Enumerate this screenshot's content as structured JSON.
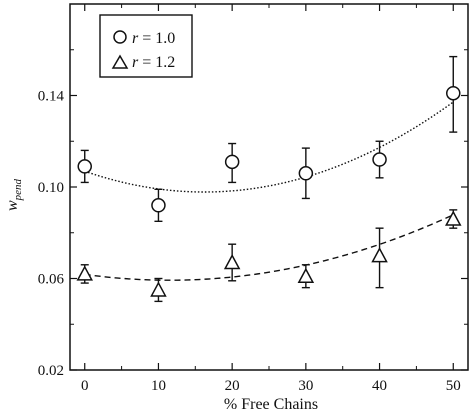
{
  "chart_data": {
    "type": "scatter",
    "xlabel": "% Free Chains",
    "ylabel": "w",
    "ylabel_sub": "pend",
    "xlim": [
      -2,
      52
    ],
    "ylim": [
      0.02,
      0.18
    ],
    "xticks": [
      0,
      10,
      20,
      30,
      40,
      50
    ],
    "xtick_labels": [
      "0",
      "10",
      "20",
      "30",
      "40",
      "50"
    ],
    "yticks": [
      0.02,
      0.06,
      0.1,
      0.14
    ],
    "ytick_labels": [
      "0.02",
      "0.06",
      "0.10",
      "0.14"
    ],
    "grid": false,
    "legend_position": "top-left",
    "series": [
      {
        "name": "r = 1.0",
        "legend_italic": "r",
        "legend_rest": " = 1.0",
        "marker": "circle",
        "line_style": "dotted",
        "x": [
          0,
          10,
          20,
          30,
          40,
          50
        ],
        "y": [
          0.109,
          0.092,
          0.111,
          0.106,
          0.112,
          0.141
        ],
        "err_low": [
          0.102,
          0.085,
          0.102,
          0.095,
          0.104,
          0.124
        ],
        "err_high": [
          0.116,
          0.099,
          0.119,
          0.117,
          0.12,
          0.157
        ],
        "fit_coeffs": [
          0.1069,
          -0.00112,
          3.45e-05
        ]
      },
      {
        "name": "r = 1.2",
        "legend_italic": "r",
        "legend_rest": " = 1.2",
        "marker": "triangle",
        "line_style": "dashed",
        "x": [
          0,
          10,
          20,
          30,
          40,
          50
        ],
        "y": [
          0.062,
          0.055,
          0.067,
          0.061,
          0.07,
          0.086
        ],
        "err_low": [
          0.058,
          0.05,
          0.059,
          0.056,
          0.056,
          0.082
        ],
        "err_high": [
          0.066,
          0.06,
          0.075,
          0.066,
          0.082,
          0.09
        ],
        "fit_coeffs": [
          0.0618,
          -0.000444,
          1.93e-05
        ]
      }
    ]
  }
}
